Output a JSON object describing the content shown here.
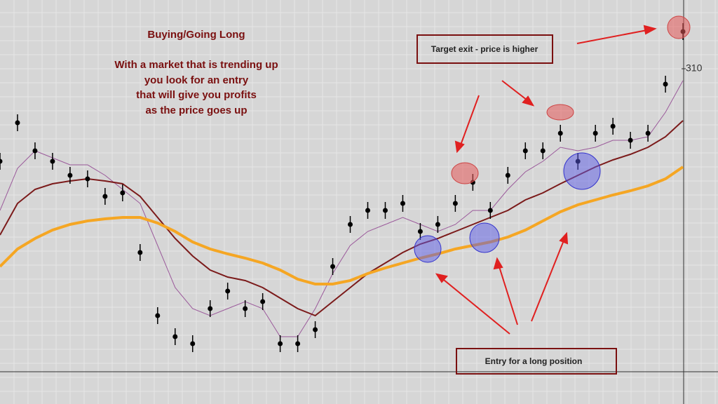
{
  "chart_data": {
    "type": "line",
    "title": "Buying/Going Long",
    "subtitle": [
      "With a market that is trending up",
      "you look for an entry",
      "that will give you profits",
      "as the price goes up"
    ],
    "annotations": [
      "Target exit - price is higher",
      "Entry for a long position"
    ],
    "x": [
      0,
      1,
      2,
      3,
      4,
      5,
      6,
      7,
      8,
      9,
      10,
      11,
      12,
      13,
      14,
      15,
      16,
      17,
      18,
      19,
      20,
      21,
      22,
      23,
      24,
      25,
      26,
      27,
      28,
      29,
      30,
      31,
      32,
      33,
      34,
      35,
      36,
      37,
      38,
      39
    ],
    "xlim": [
      0,
      41
    ],
    "ylim": [
      190.5,
      334.5
    ],
    "yticks": [
      310
    ],
    "grid": true,
    "series": [
      {
        "color": "#000000",
        "values": [
          277,
          290.75,
          280.75,
          277,
          272,
          270.75,
          264.5,
          265.75,
          244.5,
          222,
          214.5,
          212,
          224.5,
          230.75,
          224.5,
          227,
          212,
          212,
          217,
          239.5,
          254.5,
          259.5,
          259.5,
          262,
          252,
          254.5,
          262,
          269.5,
          259.5,
          272,
          280.75,
          280.75,
          287,
          277,
          287,
          289.5,
          284.5,
          287,
          304.5,
          323.25
        ]
      },
      {
        "color": "#9b5a9b",
        "values": [
          259.5,
          274.5,
          280.75,
          278.25,
          275.75,
          275.75,
          272,
          267,
          262,
          247,
          232,
          224.5,
          222,
          224.5,
          227,
          224.5,
          214.5,
          214.5,
          224.5,
          237,
          247,
          252,
          254.5,
          257,
          254.5,
          252,
          254.5,
          259.5,
          259.5,
          267,
          273.25,
          277,
          282,
          280.75,
          282,
          284.5,
          284.5,
          285.75,
          294.5,
          305.75
        ]
      },
      {
        "color": "#7b1a1a",
        "values": [
          250.75,
          262,
          267,
          269,
          270,
          270.75,
          270,
          269,
          264.5,
          257,
          249.5,
          243.25,
          238.25,
          235.75,
          234.5,
          232,
          228.25,
          224.5,
          222,
          227,
          232,
          237,
          240.75,
          244.5,
          247.5,
          249.5,
          252,
          254.5,
          257,
          259.5,
          263.25,
          265.75,
          269,
          272,
          275,
          277.5,
          279.5,
          282,
          285.75,
          291.5
        ]
      },
      {
        "color": "#f5a623",
        "values": [
          239.5,
          245.75,
          249.5,
          252.5,
          254.5,
          255.75,
          256.5,
          257,
          257,
          255,
          252,
          248.25,
          245.75,
          244,
          242.5,
          240.75,
          238.25,
          235,
          233.25,
          233.25,
          234.5,
          237,
          239,
          240.75,
          242.5,
          244,
          245.75,
          247,
          248.25,
          250,
          252.5,
          255.75,
          259,
          261.5,
          263.25,
          265,
          266.5,
          268.25,
          270.75,
          275
        ]
      }
    ]
  }
}
